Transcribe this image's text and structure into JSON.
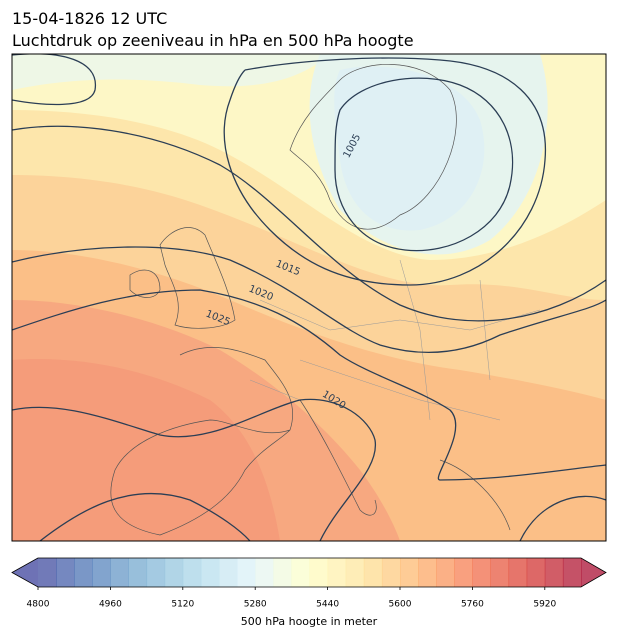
{
  "title": "15-04-1826 12 UTC",
  "subtitle": "Luchtdruk op zeeniveau in hPa en 500 hPa hoogte",
  "contour_labels": [
    1005,
    1015,
    1020,
    1025,
    1020
  ],
  "colorbar": {
    "label": "500 hPa hoogte in meter",
    "lim": [
      4800,
      6000
    ],
    "step": 40,
    "ticks": [
      4800,
      4960,
      5120,
      5280,
      5440,
      5600,
      5760,
      5920
    ],
    "colors": [
      "#313695",
      "#4575b4",
      "#74add1",
      "#abd9e9",
      "#e0f3f8",
      "#ffffbf",
      "#fee090",
      "#fdae61",
      "#f46d43",
      "#d73027",
      "#a50026"
    ],
    "opacity": 0.7
  }
}
